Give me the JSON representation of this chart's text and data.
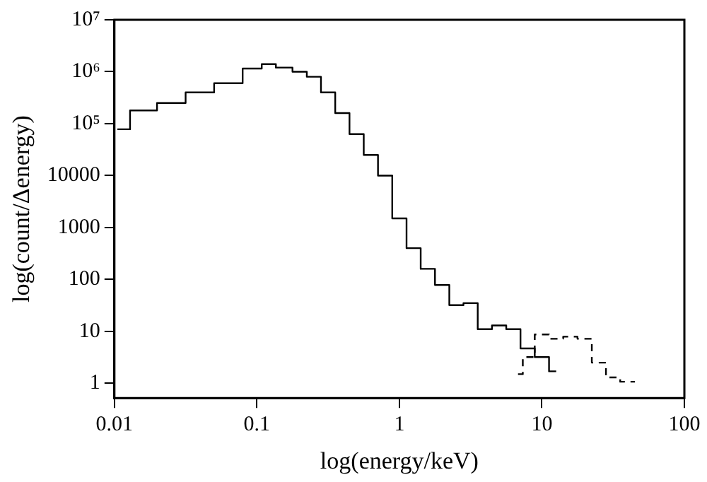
{
  "chart_data": {
    "type": "step",
    "xlabel": "log(energy/keV)",
    "ylabel": "log(count/Δenergy)",
    "log": "xy",
    "grid": false,
    "legend": false,
    "xlim": [
      0.01,
      100
    ],
    "xticks": [
      0.01,
      0.1,
      1,
      10,
      100
    ],
    "ylim": [
      0.52,
      10000000
    ],
    "yticks": [
      1,
      10,
      100,
      1000,
      10000,
      {
        "value": 100000,
        "label": "10⁵"
      },
      {
        "value": 1000000,
        "label": "10⁶"
      },
      {
        "value": 10000000,
        "label": "10⁷"
      }
    ],
    "series": [
      {
        "color": "#000000",
        "line_style": "solid",
        "x": [
          0.0105,
          0.0158,
          0.0251,
          0.0398,
          0.0631,
          0.1,
          0.117,
          0.158,
          0.2,
          0.251,
          0.316,
          0.398,
          0.501,
          0.631,
          0.794,
          1,
          1.26,
          1.58,
          2,
          2.51,
          3.16,
          3.98,
          5.01,
          6.31,
          7.94,
          10,
          12.6
        ],
        "values": [
          78000,
          180000,
          250000,
          400000,
          600000,
          1150000,
          1400000,
          1200000,
          1000000,
          800000,
          400000,
          160000,
          63000,
          25000,
          10000,
          1500,
          400,
          160,
          78,
          32,
          35,
          11,
          13,
          11,
          4.7,
          3.2,
          1.7
        ]
      },
      {
        "color": "#000000",
        "line_style": "dashed",
        "x": [
          6.8,
          7.94,
          10,
          12.6,
          15.8,
          20,
          25.1,
          31.6,
          39.8,
          45
        ],
        "values": [
          1.5,
          3.2,
          8.7,
          7.2,
          7.9,
          7.2,
          2.5,
          1.3,
          1.07,
          1.07
        ]
      }
    ]
  }
}
